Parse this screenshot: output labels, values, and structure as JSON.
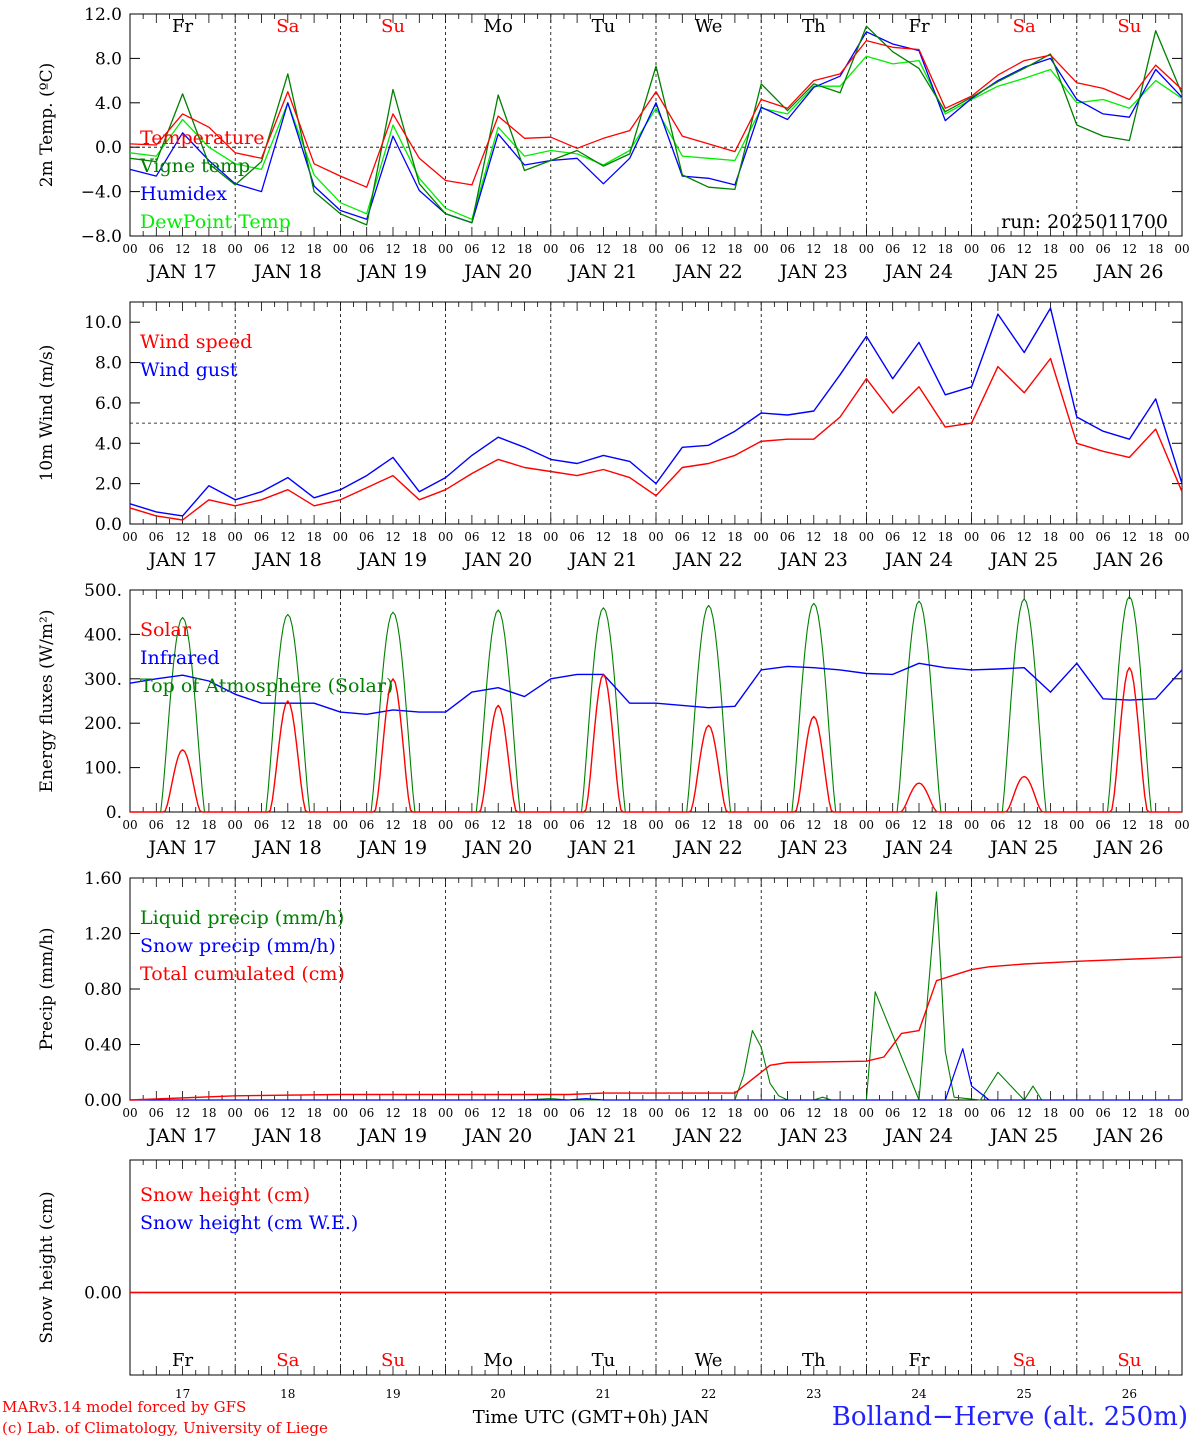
{
  "run_label": "run: 2025011700",
  "day_labels": [
    "Fr",
    "Sa",
    "Su",
    "Mo",
    "Tu",
    "We",
    "Th",
    "Fr",
    "Sa",
    "Su"
  ],
  "weekend_flags": [
    false,
    true,
    true,
    false,
    false,
    false,
    false,
    false,
    true,
    true
  ],
  "date_labels": [
    "JAN 17",
    "JAN 18",
    "JAN 19",
    "JAN 20",
    "JAN 21",
    "JAN 22",
    "JAN 23",
    "JAN 24",
    "JAN 25",
    "JAN 26"
  ],
  "hour_ticks": [
    "00",
    "06",
    "12",
    "18"
  ],
  "bottom_day_numbers": [
    "17",
    "18",
    "19",
    "20",
    "21",
    "22",
    "23",
    "24",
    "25",
    "26"
  ],
  "x_axis_title": "Time UTC (GMT+0h) JAN",
  "footer": {
    "credit_line1": "MARv3.14 model forced by GFS",
    "credit_line2": "(c) Lab. of Climatology, University of Liege",
    "station": "Bolland−Herve (alt. 250m)"
  },
  "colors": {
    "red": "#ff0000",
    "green": "#008000",
    "blue": "#0000ff",
    "lightgreen": "#00ee00"
  },
  "chart_data": [
    {
      "type": "line",
      "ylabel": "2m Temp. (ºC)",
      "ylim": [
        -8,
        12
      ],
      "yticks": [
        "12.0",
        "8.0",
        "4.0",
        "0.0",
        "−4.0",
        "−8.0"
      ],
      "ytick_values": [
        12,
        8,
        4,
        0,
        -4,
        -8
      ],
      "ref_line": 0,
      "x_hours": [
        0,
        6,
        12,
        18,
        24,
        30,
        36,
        42,
        48,
        54,
        60,
        66,
        72,
        78,
        84,
        90,
        96,
        102,
        108,
        114,
        120,
        126,
        132,
        138,
        144,
        150,
        156,
        162,
        168,
        174,
        180,
        186,
        192,
        198,
        204,
        210,
        216,
        222,
        228,
        234,
        240
      ],
      "series": [
        {
          "name": "Temperature",
          "color": "red",
          "values": [
            0.3,
            0.2,
            3.0,
            1.8,
            -0.5,
            -1.0,
            5.0,
            -1.5,
            -2.6,
            -3.6,
            3.0,
            -1.0,
            -3.0,
            -3.4,
            2.8,
            0.8,
            0.9,
            -0.1,
            0.8,
            1.5,
            5.0,
            1.0,
            0.3,
            -0.4,
            4.3,
            3.5,
            6.0,
            6.6,
            9.6,
            9.0,
            8.8,
            3.5,
            4.6,
            6.5,
            7.8,
            8.3,
            5.8,
            5.3,
            4.3,
            7.4,
            5.2
          ]
        },
        {
          "name": "Vigne temp",
          "color": "green",
          "values": [
            -1.0,
            -1.3,
            4.8,
            -1.5,
            -3.4,
            -1.3,
            6.6,
            -4.0,
            -6.0,
            -7.0,
            5.2,
            -3.3,
            -6.0,
            -6.8,
            4.7,
            -2.1,
            -1.2,
            -0.3,
            -1.7,
            -0.6,
            7.3,
            -2.5,
            -3.6,
            -3.8,
            5.7,
            3.3,
            5.7,
            4.9,
            10.9,
            8.6,
            7.1,
            3.2,
            4.5,
            5.9,
            7.1,
            8.4,
            2.0,
            1.0,
            0.6,
            10.5,
            4.8
          ]
        },
        {
          "name": "Humidex",
          "color": "blue",
          "values": [
            -2.0,
            -2.6,
            1.3,
            -1.2,
            -3.3,
            -4.0,
            4.0,
            -3.5,
            -5.7,
            -6.5,
            1.0,
            -3.9,
            -6.0,
            -6.8,
            1.2,
            -1.6,
            -1.2,
            -1.0,
            -3.3,
            -1.0,
            4.0,
            -2.6,
            -2.8,
            -3.4,
            3.6,
            2.5,
            5.4,
            6.4,
            10.4,
            9.3,
            8.7,
            2.4,
            4.4,
            6.0,
            7.2,
            8.0,
            4.3,
            3.0,
            2.7,
            7.0,
            4.5
          ]
        },
        {
          "name": "DewPoint Temp",
          "color": "lightgreen",
          "values": [
            -0.5,
            -0.8,
            2.5,
            0.0,
            -1.5,
            -2.0,
            4.0,
            -2.5,
            -5.0,
            -6.0,
            2.0,
            -2.8,
            -5.5,
            -6.5,
            1.8,
            -0.8,
            -0.3,
            -0.6,
            -1.6,
            -0.3,
            3.5,
            -0.8,
            -1.0,
            -1.2,
            3.5,
            3.0,
            5.5,
            5.5,
            8.2,
            7.5,
            7.8,
            3.0,
            4.3,
            5.5,
            6.2,
            7.0,
            4.0,
            4.3,
            3.5,
            6.0,
            4.4
          ]
        }
      ]
    },
    {
      "type": "line",
      "ylabel": "10m Wind (m/s)",
      "ylim": [
        0,
        11
      ],
      "yticks": [
        "10.0",
        "8.0",
        "6.0",
        "4.0",
        "2.0",
        "0.0"
      ],
      "ytick_values": [
        10,
        8,
        6,
        4,
        2,
        0
      ],
      "ref_line": 5,
      "x_hours": [
        0,
        6,
        12,
        18,
        24,
        30,
        36,
        42,
        48,
        54,
        60,
        66,
        72,
        78,
        84,
        90,
        96,
        102,
        108,
        114,
        120,
        126,
        132,
        138,
        144,
        150,
        156,
        162,
        168,
        174,
        180,
        186,
        192,
        198,
        204,
        210,
        216,
        222,
        228,
        234,
        240
      ],
      "series": [
        {
          "name": "Wind speed",
          "color": "red",
          "values": [
            0.8,
            0.4,
            0.2,
            1.2,
            0.9,
            1.2,
            1.7,
            0.9,
            1.2,
            1.8,
            2.4,
            1.2,
            1.7,
            2.5,
            3.2,
            2.8,
            2.6,
            2.4,
            2.7,
            2.3,
            1.4,
            2.8,
            3.0,
            3.4,
            4.1,
            4.2,
            4.2,
            5.3,
            7.2,
            5.5,
            6.8,
            4.8,
            5.0,
            7.8,
            6.5,
            8.2,
            4.0,
            3.6,
            3.3,
            4.7,
            1.6
          ]
        },
        {
          "name": "Wind gust",
          "color": "blue",
          "values": [
            1.0,
            0.6,
            0.4,
            1.9,
            1.2,
            1.6,
            2.3,
            1.3,
            1.7,
            2.4,
            3.3,
            1.6,
            2.3,
            3.4,
            4.3,
            3.8,
            3.2,
            3.0,
            3.4,
            3.1,
            2.0,
            3.8,
            3.9,
            4.6,
            5.5,
            5.4,
            5.6,
            7.4,
            9.3,
            7.2,
            9.0,
            6.4,
            6.8,
            10.4,
            8.5,
            10.7,
            5.3,
            4.6,
            4.2,
            6.2,
            2.0
          ]
        }
      ]
    },
    {
      "type": "line",
      "ylabel": "Energy fluxes (W/m²)",
      "ylim": [
        0,
        500
      ],
      "yticks": [
        "500.",
        "400.",
        "300.",
        "200.",
        "100.",
        "0."
      ],
      "ytick_values": [
        500,
        400,
        300,
        200,
        100,
        0
      ],
      "series": [
        {
          "name": "Solar",
          "color": "red",
          "peak_hour": 12,
          "daily_peaks": [
            140,
            250,
            300,
            240,
            310,
            195,
            215,
            65,
            80,
            325
          ]
        },
        {
          "name": "Infrared",
          "color": "blue",
          "x_hours": [
            0,
            6,
            12,
            18,
            24,
            30,
            36,
            42,
            48,
            54,
            60,
            66,
            72,
            78,
            84,
            90,
            96,
            102,
            108,
            114,
            120,
            126,
            132,
            138,
            144,
            150,
            156,
            162,
            168,
            174,
            180,
            186,
            192,
            198,
            204,
            210,
            216,
            222,
            228,
            234,
            240
          ],
          "values": [
            290,
            300,
            308,
            295,
            265,
            245,
            245,
            245,
            225,
            220,
            230,
            225,
            225,
            270,
            280,
            260,
            300,
            310,
            310,
            245,
            245,
            240,
            235,
            238,
            320,
            328,
            325,
            320,
            312,
            310,
            335,
            325,
            320,
            322,
            325,
            270,
            335,
            255,
            252,
            255,
            320
          ]
        },
        {
          "name": "Top of Atmosphere (Solar)",
          "color": "green",
          "peak_hour": 12,
          "daily_peaks": [
            438,
            445,
            450,
            455,
            460,
            465,
            470,
            475,
            480,
            485
          ]
        }
      ]
    },
    {
      "type": "line",
      "ylabel": "Precip (mm/h)",
      "ylim": [
        0,
        1.6
      ],
      "yticks": [
        "1.60",
        "1.20",
        "0.80",
        "0.40",
        "0.00"
      ],
      "ytick_values": [
        1.6,
        1.2,
        0.8,
        0.4,
        0
      ],
      "series": [
        {
          "name": "Liquid precip (mm/h)",
          "color": "green",
          "x_hours": [
            0,
            90,
            96,
            100,
            102,
            105,
            108,
            110,
            112,
            114,
            116,
            118,
            120,
            132,
            138,
            140,
            142,
            144,
            146,
            148,
            150,
            152,
            154,
            156,
            158,
            160,
            162,
            164,
            168,
            170,
            180,
            184,
            186,
            188,
            194,
            198,
            204,
            206,
            208,
            210,
            240
          ],
          "values": [
            0,
            0,
            0.01,
            0,
            0,
            0,
            0,
            0,
            0,
            0,
            0,
            0,
            0,
            0,
            0,
            0.18,
            0.5,
            0.38,
            0.12,
            0.03,
            0,
            0,
            0,
            0,
            0.02,
            0,
            0,
            0,
            0,
            0.78,
            0,
            1.5,
            0.35,
            0.02,
            0,
            0.2,
            0,
            0.1,
            0,
            0,
            0
          ]
        },
        {
          "name": "Snow precip (mm/h)",
          "color": "blue",
          "x_hours": [
            0,
            100,
            104,
            108,
            186,
            190,
            192,
            196,
            240
          ],
          "values": [
            0,
            0,
            0.01,
            0,
            0,
            0.37,
            0.1,
            0,
            0
          ]
        },
        {
          "name": "Total cumulated (cm)",
          "color": "red",
          "x_hours": [
            0,
            24,
            48,
            72,
            96,
            100,
            108,
            120,
            138,
            142,
            146,
            150,
            168,
            172,
            176,
            180,
            184,
            188,
            192,
            196,
            204,
            216,
            240
          ],
          "values": [
            0.0,
            0.03,
            0.04,
            0.04,
            0.04,
            0.04,
            0.05,
            0.05,
            0.05,
            0.15,
            0.25,
            0.27,
            0.28,
            0.31,
            0.48,
            0.5,
            0.86,
            0.9,
            0.94,
            0.96,
            0.98,
            1.0,
            1.03
          ]
        }
      ]
    },
    {
      "type": "line",
      "ylabel": "Snow height (cm)",
      "yticks": [
        "0.00"
      ],
      "ytick_values": [
        0
      ],
      "series": [
        {
          "name": "Snow height (cm)",
          "color": "red",
          "x_hours": [
            0,
            240
          ],
          "values": [
            0,
            0
          ]
        },
        {
          "name": "Snow height (cm W.E.)",
          "color": "blue",
          "x_hours": [
            0,
            240
          ],
          "values": [
            0,
            0
          ]
        }
      ]
    }
  ]
}
